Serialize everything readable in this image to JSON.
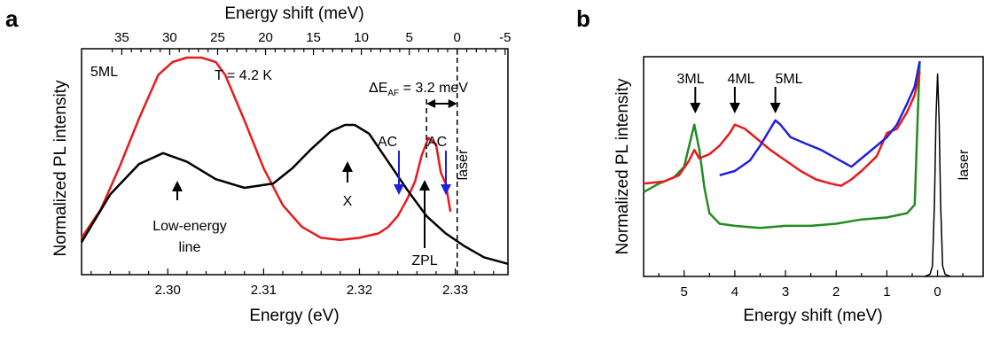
{
  "chart_data": [
    {
      "panel": "a",
      "type": "line",
      "xlabel": "Energy (eV)",
      "x2label": "Energy shift (meV)",
      "ylabel": "Normalized PL intensity",
      "xlim": [
        2.291,
        2.3355
      ],
      "x_ticks": [
        "2.30",
        "2.31",
        "2.32",
        "2.33"
      ],
      "x2_ticks": [
        "35",
        "30",
        "25",
        "20",
        "15",
        "10",
        "5",
        "0",
        "-5"
      ],
      "x2_tick_values": [
        35,
        30,
        25,
        20,
        15,
        10,
        5,
        0,
        -5
      ],
      "laser_energy_eV": 2.3302,
      "zpl_energy_eV": 2.327,
      "annotations": {
        "sample": "5ML",
        "temperature": "T = 4.2 K",
        "delta_prefix": "ΔE",
        "delta_sub": "AF",
        "delta_suffix": " = 3.2 meV",
        "ac_left": "AC",
        "ac_right": "AC",
        "laser": "laser",
        "x_peak": "X",
        "zpl": "ZPL",
        "low_energy_1": "Low-energy",
        "low_energy_2": "line"
      },
      "series": [
        {
          "color": "#e8191e",
          "x": [
            2.291,
            2.293,
            2.295,
            2.297,
            2.299,
            2.3005,
            2.302,
            2.3035,
            2.305,
            2.306,
            2.308,
            2.31,
            2.312,
            2.314,
            2.316,
            2.318,
            2.32,
            2.322,
            2.323,
            2.324,
            2.325,
            2.3258,
            2.3265,
            2.3272,
            2.328,
            2.3285,
            2.329,
            2.3295
          ],
          "y": [
            0.17,
            0.3,
            0.5,
            0.72,
            0.92,
            0.98,
            1.0,
            1.0,
            0.98,
            0.92,
            0.71,
            0.49,
            0.32,
            0.22,
            0.17,
            0.16,
            0.17,
            0.19,
            0.22,
            0.27,
            0.35,
            0.43,
            0.55,
            0.63,
            0.6,
            0.47,
            0.42,
            0.29
          ]
        },
        {
          "color": "#000000",
          "x": [
            2.291,
            2.294,
            2.297,
            2.2995,
            2.302,
            2.305,
            2.308,
            2.311,
            2.313,
            2.315,
            2.317,
            2.3185,
            2.3195,
            2.321,
            2.323,
            2.325,
            2.327,
            2.329,
            2.331,
            2.333,
            2.3355
          ],
          "y": [
            0.15,
            0.37,
            0.51,
            0.56,
            0.52,
            0.44,
            0.4,
            0.42,
            0.49,
            0.58,
            0.66,
            0.69,
            0.69,
            0.65,
            0.52,
            0.39,
            0.27,
            0.19,
            0.13,
            0.08,
            0.05
          ]
        }
      ]
    },
    {
      "panel": "b",
      "type": "line",
      "xlabel": "Energy shift (meV)",
      "ylabel": "Normalized PL intensity",
      "xlim": [
        5.8,
        -0.9
      ],
      "x_ticks": [
        "5",
        "4",
        "3",
        "2",
        "1",
        "0"
      ],
      "annotations": {
        "ml3": "3ML",
        "ml4": "4ML",
        "ml5": "5ML",
        "laser": "laser"
      },
      "series": [
        {
          "color": "#238b22",
          "x": [
            5.8,
            5.5,
            5.2,
            5.0,
            4.9,
            4.8,
            4.7,
            4.6,
            4.5,
            4.3,
            4.0,
            3.5,
            3.0,
            2.5,
            2.0,
            1.5,
            1.0,
            0.6,
            0.45,
            0.4,
            0.35
          ],
          "y": [
            0.4,
            0.44,
            0.47,
            0.52,
            0.62,
            0.72,
            0.6,
            0.42,
            0.3,
            0.25,
            0.24,
            0.23,
            0.24,
            0.24,
            0.25,
            0.27,
            0.28,
            0.3,
            0.34,
            0.7,
            1.02
          ]
        },
        {
          "color": "#e8191e",
          "x": [
            5.8,
            5.4,
            5.1,
            4.9,
            4.8,
            4.7,
            4.5,
            4.3,
            4.1,
            4.0,
            3.8,
            3.6,
            3.3,
            3.0,
            2.7,
            2.4,
            2.1,
            1.9,
            1.7,
            1.5,
            1.2,
            1.0,
            0.8,
            0.6,
            0.45,
            0.35
          ],
          "y": [
            0.44,
            0.45,
            0.48,
            0.55,
            0.6,
            0.56,
            0.58,
            0.62,
            0.68,
            0.72,
            0.7,
            0.66,
            0.6,
            0.55,
            0.5,
            0.46,
            0.44,
            0.43,
            0.46,
            0.5,
            0.57,
            0.68,
            0.7,
            0.78,
            0.86,
            0.97
          ]
        },
        {
          "color": "#1f1fe0",
          "x": [
            4.3,
            4.0,
            3.7,
            3.5,
            3.3,
            3.2,
            3.1,
            2.9,
            2.6,
            2.3,
            2.0,
            1.7,
            1.4,
            1.2,
            1.0,
            0.8,
            0.6,
            0.45,
            0.35
          ],
          "y": [
            0.48,
            0.5,
            0.55,
            0.62,
            0.7,
            0.74,
            0.72,
            0.66,
            0.63,
            0.6,
            0.56,
            0.52,
            0.58,
            0.62,
            0.66,
            0.72,
            0.82,
            0.9,
            1.02
          ]
        },
        {
          "color": "#000000",
          "x": [
            0.25,
            0.15,
            0.1,
            0.06,
            0.03,
            0.0,
            -0.03,
            -0.06,
            -0.1,
            -0.15,
            -0.25
          ],
          "y": [
            0.0,
            0.01,
            0.05,
            0.35,
            0.75,
            0.96,
            0.75,
            0.35,
            0.05,
            0.01,
            0.0
          ]
        }
      ]
    }
  ],
  "labels": {
    "panel_a": "a",
    "panel_b": "b"
  }
}
